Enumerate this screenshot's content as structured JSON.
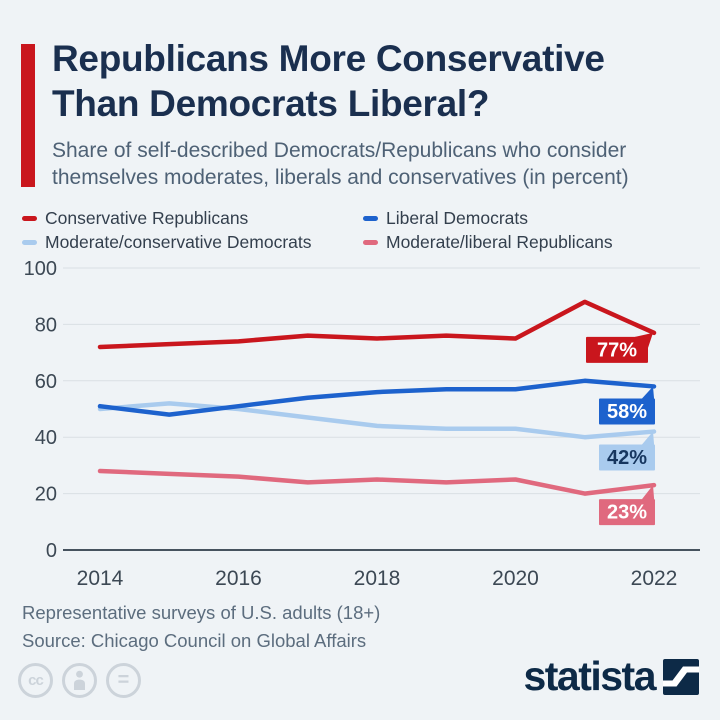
{
  "header": {
    "title_line1": "Republicans More Conservative",
    "title_line2": "Than Democrats Liberal?",
    "subtitle_line1": "Share of self-described Democrats/Republicans who consider",
    "subtitle_line2": "themselves moderates, liberals and conservatives (in percent)",
    "accent_color": "#c9161d"
  },
  "chart_data": {
    "type": "line",
    "title": "Republicans More Conservative Than Democrats Liberal?",
    "xlabel": "",
    "ylabel": "",
    "x": [
      2014,
      2015,
      2016,
      2017,
      2018,
      2019,
      2020,
      2021,
      2022
    ],
    "xtick_labels": [
      "2014",
      "2016",
      "2018",
      "2020",
      "2022"
    ],
    "yticks": [
      0,
      20,
      40,
      60,
      80,
      100
    ],
    "ylim": [
      0,
      100
    ],
    "grid": true,
    "legend_position": "top",
    "series": [
      {
        "name": "Conservative Republicans",
        "color": "#c9161d",
        "values": [
          72,
          73,
          74,
          76,
          75,
          76,
          75,
          88,
          77
        ],
        "end_label": "77%",
        "end_label_text_color": "#ffffff"
      },
      {
        "name": "Liberal Democrats",
        "color": "#1d62cd",
        "values": [
          51,
          48,
          51,
          54,
          56,
          57,
          57,
          60,
          58
        ],
        "end_label": "58%",
        "end_label_text_color": "#ffffff"
      },
      {
        "name": "Moderate/conservative Democrats",
        "color": "#a9cbee",
        "values": [
          50,
          52,
          50,
          47,
          44,
          43,
          43,
          40,
          42
        ],
        "end_label": "42%",
        "end_label_text_color": "#16365f"
      },
      {
        "name": "Moderate/liberal Republicans",
        "color": "#e0697e",
        "values": [
          28,
          27,
          26,
          24,
          25,
          24,
          25,
          20,
          23
        ],
        "end_label": "23%",
        "end_label_text_color": "#ffffff"
      }
    ]
  },
  "footer": {
    "note": "Representative surveys of U.S. adults (18+)",
    "source": "Source: Chicago Council on Global Affairs",
    "cc_text": "cc",
    "equals_text": "=",
    "logo_text": "statista"
  },
  "colors": {
    "background": "#eff3f6",
    "title_navy": "#1a2f4f",
    "statista_navy": "#0d2a47",
    "gridline": "#dadfe4",
    "axis_baseline": "#46525e"
  }
}
